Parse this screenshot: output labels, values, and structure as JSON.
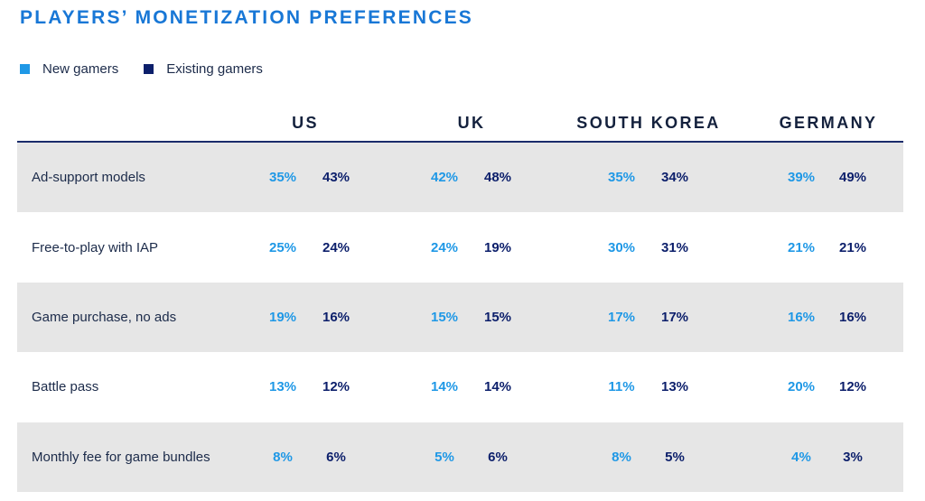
{
  "chart_data": {
    "type": "table",
    "title": "PLAYERS’ MONETIZATION PREFERENCES",
    "legend": [
      {
        "name": "New gamers",
        "color": "#1f98e6"
      },
      {
        "name": "Existing gamers",
        "color": "#0c1f6b"
      }
    ],
    "columns": [
      "US",
      "UK",
      "SOUTH KOREA",
      "GERMANY"
    ],
    "rows": [
      {
        "label": "Ad-support models",
        "values": [
          [
            "35%",
            "43%"
          ],
          [
            "42%",
            "48%"
          ],
          [
            "35%",
            "34%"
          ],
          [
            "39%",
            "49%"
          ]
        ]
      },
      {
        "label": "Free-to-play with IAP",
        "values": [
          [
            "25%",
            "24%"
          ],
          [
            "24%",
            "19%"
          ],
          [
            "30%",
            "31%"
          ],
          [
            "21%",
            "21%"
          ]
        ]
      },
      {
        "label": "Game purchase, no ads",
        "values": [
          [
            "19%",
            "16%"
          ],
          [
            "15%",
            "15%"
          ],
          [
            "17%",
            "17%"
          ],
          [
            "16%",
            "16%"
          ]
        ]
      },
      {
        "label": "Battle pass",
        "values": [
          [
            "13%",
            "12%"
          ],
          [
            "14%",
            "14%"
          ],
          [
            "11%",
            "13%"
          ],
          [
            "20%",
            "12%"
          ]
        ]
      },
      {
        "label": "Monthly fee for game bundles",
        "values": [
          [
            "8%",
            "6%"
          ],
          [
            "5%",
            "6%"
          ],
          [
            "8%",
            "5%"
          ],
          [
            "4%",
            "3%"
          ]
        ]
      }
    ],
    "series_order": [
      "New gamers",
      "Existing gamers"
    ]
  }
}
